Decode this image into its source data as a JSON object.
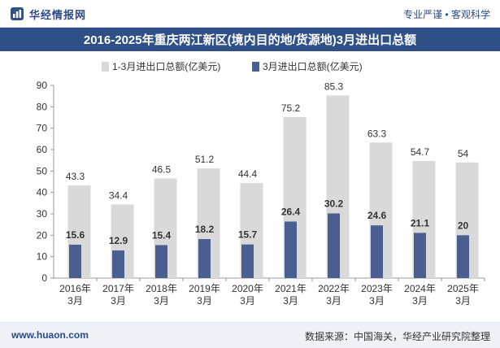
{
  "header": {
    "brand_name": "华经情报网",
    "slogan": "专业严谨 • 客观科学"
  },
  "chart_data": {
    "type": "bar",
    "title": "2016-2025年重庆两江新区(境内目的地/货源地)3月进出口总额",
    "categories": [
      [
        "2016年",
        "3月"
      ],
      [
        "2017年",
        "3月"
      ],
      [
        "2018年",
        "3月"
      ],
      [
        "2019年",
        "3月"
      ],
      [
        "2020年",
        "3月"
      ],
      [
        "2021年",
        "3月"
      ],
      [
        "2022年",
        "3月"
      ],
      [
        "2023年",
        "3月"
      ],
      [
        "2024年",
        "3月"
      ],
      [
        "2025年",
        "3月"
      ]
    ],
    "series": [
      {
        "name": "1-3月进出口总额(亿美元)",
        "values": [
          43.3,
          34.4,
          46.5,
          51.2,
          44.4,
          75.2,
          85.3,
          63.3,
          54.7,
          54
        ],
        "color": "#d9d9d9"
      },
      {
        "name": "3月进出口总额(亿美元)",
        "values": [
          15.6,
          12.9,
          15.4,
          18.2,
          15.7,
          26.4,
          30.2,
          24.6,
          21.1,
          20
        ],
        "color": "#4a5f8f"
      }
    ],
    "ylim": [
      0,
      90
    ],
    "yticks": [
      0,
      10,
      20,
      30,
      40,
      50,
      60,
      70,
      80,
      90
    ],
    "legend_position": "top",
    "grid": false
  },
  "footer": {
    "website": "www.huaon.com",
    "source": "数据来源：中国海关，华经产业研究院整理"
  }
}
